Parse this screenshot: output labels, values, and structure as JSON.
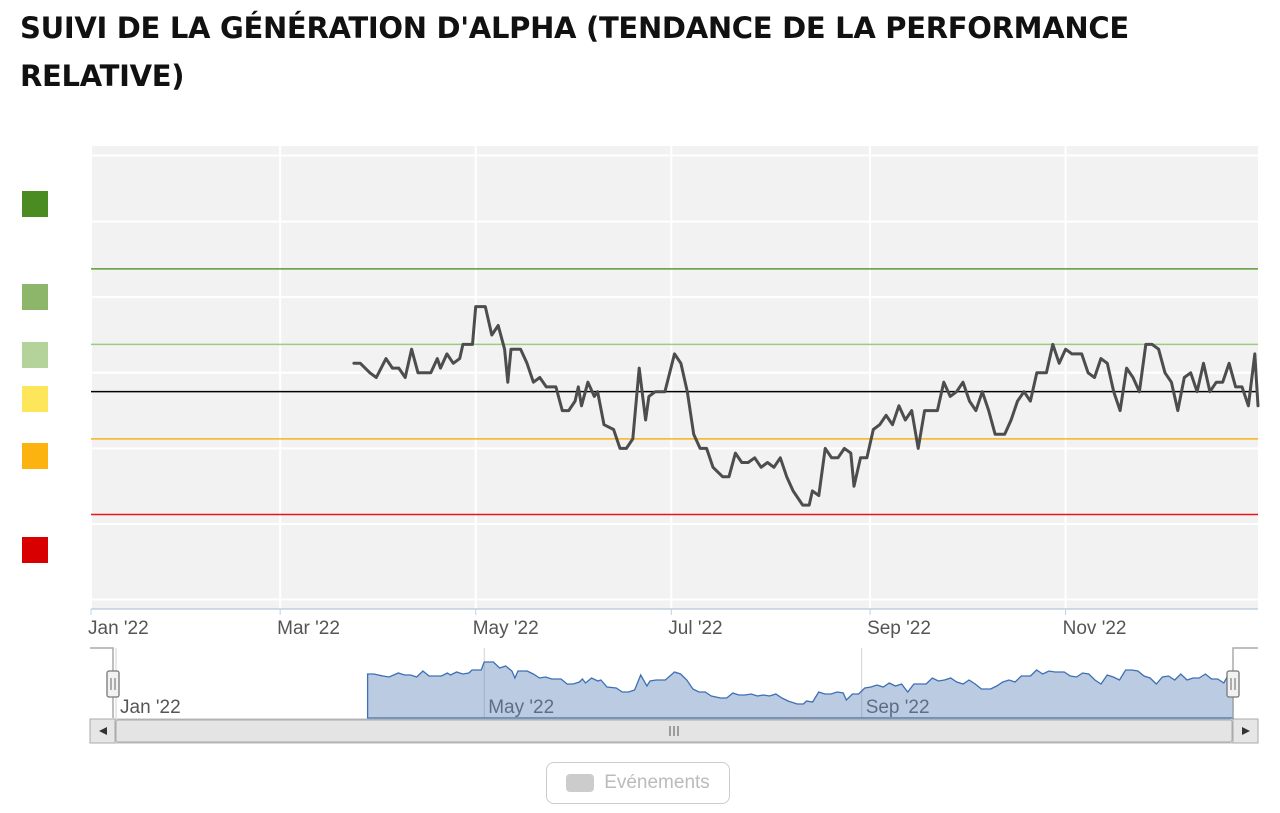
{
  "title": "SUIVI DE LA GÉNÉRATION D'ALPHA (TENDANCE DE LA PERFORMANCE RELATIVE)",
  "legend": {
    "label": "Evénements"
  },
  "scrollbar": {
    "grip": "III",
    "left_arrow": "◂",
    "right_arrow": "▸",
    "handle_glyph": "||"
  },
  "band_colors": [
    "#4a8c22",
    "#8db66a",
    "#b3d39a",
    "#fde65a",
    "#fcb30f",
    "#d80000"
  ],
  "chart_data": {
    "type": "line",
    "title": "",
    "xlabel": "",
    "ylabel": "",
    "x_range": [
      "2022-01-01",
      "2022-12-31"
    ],
    "y_range": [
      -2.3,
      2.6
    ],
    "x_ticks": [
      {
        "date": "2022-01-01",
        "label": "Jan '22"
      },
      {
        "date": "2022-03-01",
        "label": "Mar '22"
      },
      {
        "date": "2022-05-01",
        "label": "May '22"
      },
      {
        "date": "2022-07-01",
        "label": "Jul '22"
      },
      {
        "date": "2022-09-01",
        "label": "Sep '22"
      },
      {
        "date": "2022-11-01",
        "label": "Nov '22"
      }
    ],
    "navigator_ticks": [
      {
        "date": "2022-01-01",
        "label": "Jan '22"
      },
      {
        "date": "2022-05-01",
        "label": "May '22"
      },
      {
        "date": "2022-09-01",
        "label": "Sep '22"
      }
    ],
    "y_gridlines": [
      -2.2,
      -1.4,
      -0.6,
      0.2,
      1.0,
      1.8,
      2.5
    ],
    "threshold_lines": [
      {
        "value": 1.3,
        "color": "#5c9a37"
      },
      {
        "value": 0.5,
        "color": "#9ccd7d"
      },
      {
        "value": 0.0,
        "color": "#000000"
      },
      {
        "value": -0.5,
        "color": "#f9b21c"
      },
      {
        "value": -1.3,
        "color": "#e8151d"
      }
    ],
    "grid": true,
    "legend_position": "bottom-center",
    "series": [
      {
        "color": "#4d4d4d",
        "points": [
          [
            "2022-03-24",
            0.3
          ],
          [
            "2022-03-26",
            0.3
          ],
          [
            "2022-03-29",
            0.2
          ],
          [
            "2022-03-31",
            0.15
          ],
          [
            "2022-04-03",
            0.35
          ],
          [
            "2022-04-05",
            0.25
          ],
          [
            "2022-04-07",
            0.25
          ],
          [
            "2022-04-09",
            0.15
          ],
          [
            "2022-04-11",
            0.45
          ],
          [
            "2022-04-13",
            0.2
          ],
          [
            "2022-04-17",
            0.2
          ],
          [
            "2022-04-19",
            0.35
          ],
          [
            "2022-04-20",
            0.25
          ],
          [
            "2022-04-22",
            0.4
          ],
          [
            "2022-04-24",
            0.3
          ],
          [
            "2022-04-26",
            0.35
          ],
          [
            "2022-04-27",
            0.5
          ],
          [
            "2022-04-30",
            0.5
          ],
          [
            "2022-05-01",
            0.9
          ],
          [
            "2022-05-04",
            0.9
          ],
          [
            "2022-05-06",
            0.6
          ],
          [
            "2022-05-08",
            0.7
          ],
          [
            "2022-05-10",
            0.45
          ],
          [
            "2022-05-11",
            0.1
          ],
          [
            "2022-05-12",
            0.45
          ],
          [
            "2022-05-15",
            0.45
          ],
          [
            "2022-05-17",
            0.3
          ],
          [
            "2022-05-19",
            0.1
          ],
          [
            "2022-05-21",
            0.15
          ],
          [
            "2022-05-23",
            0.05
          ],
          [
            "2022-05-26",
            0.05
          ],
          [
            "2022-05-28",
            -0.2
          ],
          [
            "2022-05-30",
            -0.2
          ],
          [
            "2022-06-01",
            -0.1
          ],
          [
            "2022-06-02",
            0.05
          ],
          [
            "2022-06-03",
            -0.15
          ],
          [
            "2022-06-05",
            0.1
          ],
          [
            "2022-06-07",
            -0.05
          ],
          [
            "2022-06-08",
            0.0
          ],
          [
            "2022-06-10",
            -0.35
          ],
          [
            "2022-06-13",
            -0.4
          ],
          [
            "2022-06-15",
            -0.6
          ],
          [
            "2022-06-17",
            -0.6
          ],
          [
            "2022-06-19",
            -0.5
          ],
          [
            "2022-06-21",
            0.25
          ],
          [
            "2022-06-23",
            -0.3
          ],
          [
            "2022-06-24",
            -0.05
          ],
          [
            "2022-06-26",
            0.0
          ],
          [
            "2022-06-29",
            0.0
          ],
          [
            "2022-07-02",
            0.4
          ],
          [
            "2022-07-04",
            0.3
          ],
          [
            "2022-07-06",
            0.0
          ],
          [
            "2022-07-08",
            -0.45
          ],
          [
            "2022-07-10",
            -0.6
          ],
          [
            "2022-07-12",
            -0.6
          ],
          [
            "2022-07-14",
            -0.8
          ],
          [
            "2022-07-17",
            -0.9
          ],
          [
            "2022-07-19",
            -0.9
          ],
          [
            "2022-07-21",
            -0.65
          ],
          [
            "2022-07-23",
            -0.75
          ],
          [
            "2022-07-25",
            -0.75
          ],
          [
            "2022-07-27",
            -0.7
          ],
          [
            "2022-07-29",
            -0.8
          ],
          [
            "2022-07-31",
            -0.75
          ],
          [
            "2022-08-02",
            -0.8
          ],
          [
            "2022-08-04",
            -0.7
          ],
          [
            "2022-08-06",
            -0.9
          ],
          [
            "2022-08-08",
            -1.05
          ],
          [
            "2022-08-11",
            -1.2
          ],
          [
            "2022-08-13",
            -1.2
          ],
          [
            "2022-08-14",
            -1.05
          ],
          [
            "2022-08-16",
            -1.1
          ],
          [
            "2022-08-18",
            -0.6
          ],
          [
            "2022-08-20",
            -0.7
          ],
          [
            "2022-08-22",
            -0.7
          ],
          [
            "2022-08-24",
            -0.6
          ],
          [
            "2022-08-26",
            -0.65
          ],
          [
            "2022-08-27",
            -1.0
          ],
          [
            "2022-08-29",
            -0.7
          ],
          [
            "2022-08-31",
            -0.7
          ],
          [
            "2022-09-02",
            -0.4
          ],
          [
            "2022-09-04",
            -0.35
          ],
          [
            "2022-09-06",
            -0.25
          ],
          [
            "2022-09-08",
            -0.35
          ],
          [
            "2022-09-10",
            -0.15
          ],
          [
            "2022-09-12",
            -0.3
          ],
          [
            "2022-09-14",
            -0.2
          ],
          [
            "2022-09-16",
            -0.6
          ],
          [
            "2022-09-18",
            -0.2
          ],
          [
            "2022-09-20",
            -0.2
          ],
          [
            "2022-09-22",
            -0.2
          ],
          [
            "2022-09-24",
            0.1
          ],
          [
            "2022-09-26",
            -0.05
          ],
          [
            "2022-09-28",
            0.0
          ],
          [
            "2022-09-30",
            0.1
          ],
          [
            "2022-10-02",
            -0.1
          ],
          [
            "2022-10-04",
            -0.2
          ],
          [
            "2022-10-06",
            0.0
          ],
          [
            "2022-10-08",
            -0.2
          ],
          [
            "2022-10-10",
            -0.45
          ],
          [
            "2022-10-13",
            -0.45
          ],
          [
            "2022-10-15",
            -0.3
          ],
          [
            "2022-10-17",
            -0.1
          ],
          [
            "2022-10-19",
            0.0
          ],
          [
            "2022-10-21",
            -0.1
          ],
          [
            "2022-10-23",
            0.2
          ],
          [
            "2022-10-26",
            0.2
          ],
          [
            "2022-10-28",
            0.5
          ],
          [
            "2022-10-30",
            0.3
          ],
          [
            "2022-11-01",
            0.45
          ],
          [
            "2022-11-03",
            0.4
          ],
          [
            "2022-11-06",
            0.4
          ],
          [
            "2022-11-08",
            0.2
          ],
          [
            "2022-11-10",
            0.15
          ],
          [
            "2022-11-12",
            0.35
          ],
          [
            "2022-11-14",
            0.3
          ],
          [
            "2022-11-16",
            0.0
          ],
          [
            "2022-11-18",
            -0.2
          ],
          [
            "2022-11-20",
            0.25
          ],
          [
            "2022-11-22",
            0.15
          ],
          [
            "2022-11-24",
            0.0
          ],
          [
            "2022-11-26",
            0.5
          ],
          [
            "2022-11-28",
            0.5
          ],
          [
            "2022-11-30",
            0.45
          ],
          [
            "2022-12-02",
            0.2
          ],
          [
            "2022-12-04",
            0.1
          ],
          [
            "2022-12-06",
            -0.2
          ],
          [
            "2022-12-08",
            0.15
          ],
          [
            "2022-12-10",
            0.2
          ],
          [
            "2022-12-12",
            0.0
          ],
          [
            "2022-12-14",
            0.3
          ],
          [
            "2022-12-16",
            0.0
          ],
          [
            "2022-12-18",
            0.1
          ],
          [
            "2022-12-20",
            0.1
          ],
          [
            "2022-12-22",
            0.3
          ],
          [
            "2022-12-24",
            0.05
          ],
          [
            "2022-12-26",
            0.05
          ],
          [
            "2022-12-28",
            -0.15
          ],
          [
            "2022-12-30",
            0.4
          ],
          [
            "2022-12-31",
            -0.15
          ]
        ]
      }
    ]
  }
}
